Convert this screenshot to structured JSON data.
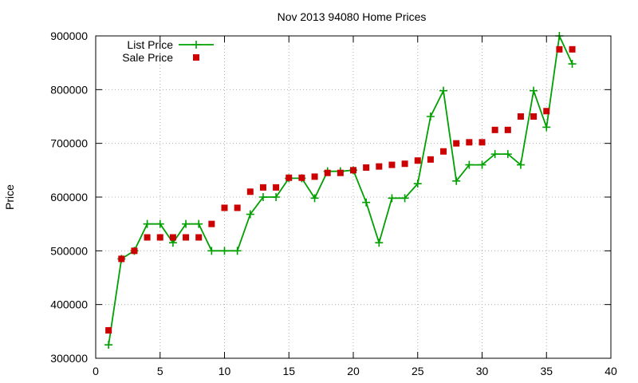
{
  "chart_data": {
    "type": "line",
    "title": "Nov 2013 94080 Home Prices",
    "xlabel": "",
    "ylabel": "Price",
    "xlim": [
      0,
      40
    ],
    "ylim": [
      300000,
      900000
    ],
    "xticks": [
      "0",
      "5",
      "10",
      "15",
      "20",
      "25",
      "30",
      "35",
      "40"
    ],
    "yticks": [
      "300000",
      "400000",
      "500000",
      "600000",
      "700000",
      "800000",
      "900000"
    ],
    "grid": true,
    "legend_position": "top-left",
    "series": [
      {
        "name": "List Price",
        "style": "line-with-plus-markers",
        "color": "#00a000",
        "points": [
          [
            1,
            325000
          ],
          [
            2,
            485000
          ],
          [
            3,
            500000
          ],
          [
            4,
            550000
          ],
          [
            5,
            550000
          ],
          [
            6,
            515000
          ],
          [
            7,
            550000
          ],
          [
            8,
            550000
          ],
          [
            9,
            500000
          ],
          [
            10,
            500000
          ],
          [
            11,
            500000
          ],
          [
            12,
            568000
          ],
          [
            13,
            600000
          ],
          [
            14,
            600000
          ],
          [
            15,
            635000
          ],
          [
            16,
            635000
          ],
          [
            17,
            598000
          ],
          [
            18,
            648000
          ],
          [
            19,
            648000
          ],
          [
            20,
            650000
          ],
          [
            21,
            590000
          ],
          [
            22,
            515000
          ],
          [
            23,
            598000
          ],
          [
            24,
            598000
          ],
          [
            25,
            625000
          ],
          [
            26,
            750000
          ],
          [
            27,
            798000
          ],
          [
            28,
            630000
          ],
          [
            29,
            660000
          ],
          [
            30,
            660000
          ],
          [
            31,
            680000
          ],
          [
            32,
            680000
          ],
          [
            33,
            660000
          ],
          [
            34,
            798000
          ],
          [
            35,
            730000
          ],
          [
            36,
            900000
          ],
          [
            37,
            848000
          ]
        ]
      },
      {
        "name": "Sale Price",
        "style": "square-markers",
        "color": "#cc0000",
        "points": [
          [
            1,
            352000
          ],
          [
            2,
            485000
          ],
          [
            3,
            500000
          ],
          [
            4,
            525000
          ],
          [
            5,
            525000
          ],
          [
            6,
            525000
          ],
          [
            7,
            525000
          ],
          [
            8,
            525000
          ],
          [
            9,
            550000
          ],
          [
            10,
            580000
          ],
          [
            11,
            580000
          ],
          [
            12,
            610000
          ],
          [
            13,
            618000
          ],
          [
            14,
            618000
          ],
          [
            15,
            636000
          ],
          [
            16,
            636000
          ],
          [
            17,
            638000
          ],
          [
            18,
            645000
          ],
          [
            19,
            645000
          ],
          [
            20,
            650000
          ],
          [
            21,
            655000
          ],
          [
            22,
            657000
          ],
          [
            23,
            660000
          ],
          [
            24,
            662000
          ],
          [
            25,
            668000
          ],
          [
            26,
            670000
          ],
          [
            27,
            685000
          ],
          [
            28,
            700000
          ],
          [
            29,
            702000
          ],
          [
            30,
            702000
          ],
          [
            31,
            725000
          ],
          [
            32,
            725000
          ],
          [
            33,
            750000
          ],
          [
            34,
            750000
          ],
          [
            35,
            760000
          ],
          [
            36,
            875000
          ],
          [
            37,
            875000
          ]
        ]
      }
    ]
  }
}
